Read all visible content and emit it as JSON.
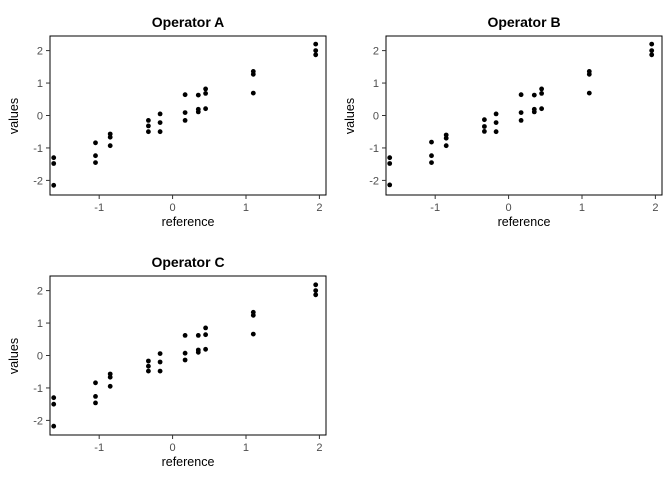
{
  "figure": {
    "background": "#ffffff",
    "panel_background": "#ffffff",
    "point_color": "#000000",
    "border_color": "#000000",
    "tick_mark_color": "#333333",
    "tick_label_color": "#4d4d4d",
    "axis_title_color": "#000000",
    "title_color": "#000000"
  },
  "chart_data": [
    {
      "type": "scatter",
      "title": "Operator A",
      "xlabel": "reference",
      "ylabel": "values",
      "xticks": [
        -1,
        0,
        1,
        2
      ],
      "yticks": [
        -2,
        -1,
        0,
        1,
        2
      ],
      "xlim": [
        -1.67,
        2.09
      ],
      "ylim": [
        -2.45,
        2.45
      ],
      "grid": false,
      "legend": false,
      "marker": "filled-circle",
      "points": [
        [
          -1.62,
          -1.3
        ],
        [
          -1.62,
          -1.48
        ],
        [
          -1.62,
          -2.15
        ],
        [
          -1.05,
          -0.84
        ],
        [
          -1.05,
          -1.24
        ],
        [
          -1.05,
          -1.45
        ],
        [
          -0.85,
          -0.57
        ],
        [
          -0.85,
          -0.67
        ],
        [
          -0.85,
          -0.93
        ],
        [
          -0.33,
          -0.15
        ],
        [
          -0.33,
          -0.32
        ],
        [
          -0.33,
          -0.5
        ],
        [
          -0.17,
          0.05
        ],
        [
          -0.17,
          -0.22
        ],
        [
          -0.17,
          -0.5
        ],
        [
          0.17,
          0.64
        ],
        [
          0.17,
          0.09
        ],
        [
          0.17,
          -0.15
        ],
        [
          0.35,
          0.63
        ],
        [
          0.35,
          0.19
        ],
        [
          0.35,
          0.11
        ],
        [
          0.45,
          0.82
        ],
        [
          0.45,
          0.68
        ],
        [
          0.45,
          0.21
        ],
        [
          1.1,
          1.36
        ],
        [
          1.1,
          1.27
        ],
        [
          1.1,
          0.69
        ],
        [
          1.95,
          2.2
        ],
        [
          1.95,
          2.0
        ],
        [
          1.95,
          1.87
        ]
      ]
    },
    {
      "type": "scatter",
      "title": "Operator B",
      "xlabel": "reference",
      "ylabel": "values",
      "xticks": [
        -1,
        0,
        1,
        2
      ],
      "yticks": [
        -2,
        -1,
        0,
        1,
        2
      ],
      "xlim": [
        -1.67,
        2.09
      ],
      "ylim": [
        -2.45,
        2.45
      ],
      "grid": false,
      "legend": false,
      "marker": "filled-circle",
      "points": [
        [
          -1.62,
          -1.3
        ],
        [
          -1.62,
          -1.48
        ],
        [
          -1.62,
          -2.14
        ],
        [
          -1.05,
          -0.82
        ],
        [
          -1.05,
          -1.24
        ],
        [
          -1.05,
          -1.45
        ],
        [
          -0.85,
          -0.6
        ],
        [
          -0.85,
          -0.7
        ],
        [
          -0.85,
          -0.93
        ],
        [
          -0.33,
          -0.13
        ],
        [
          -0.33,
          -0.34
        ],
        [
          -0.33,
          -0.49
        ],
        [
          -0.17,
          0.05
        ],
        [
          -0.17,
          -0.22
        ],
        [
          -0.17,
          -0.5
        ],
        [
          0.17,
          0.64
        ],
        [
          0.17,
          0.09
        ],
        [
          0.17,
          -0.15
        ],
        [
          0.35,
          0.63
        ],
        [
          0.35,
          0.19
        ],
        [
          0.35,
          0.11
        ],
        [
          0.45,
          0.82
        ],
        [
          0.45,
          0.68
        ],
        [
          0.45,
          0.21
        ],
        [
          1.1,
          1.36
        ],
        [
          1.1,
          1.27
        ],
        [
          1.1,
          0.69
        ],
        [
          1.95,
          2.2
        ],
        [
          1.95,
          2.0
        ],
        [
          1.95,
          1.87
        ]
      ]
    },
    {
      "type": "scatter",
      "title": "Operator C",
      "xlabel": "reference",
      "ylabel": "values",
      "xticks": [
        -1,
        0,
        1,
        2
      ],
      "yticks": [
        -2,
        -1,
        0,
        1,
        2
      ],
      "xlim": [
        -1.67,
        2.09
      ],
      "ylim": [
        -2.45,
        2.45
      ],
      "grid": false,
      "legend": false,
      "marker": "filled-circle",
      "points": [
        [
          -1.62,
          -1.3
        ],
        [
          -1.62,
          -1.5
        ],
        [
          -1.62,
          -2.18
        ],
        [
          -1.05,
          -0.84
        ],
        [
          -1.05,
          -1.26
        ],
        [
          -1.05,
          -1.46
        ],
        [
          -0.85,
          -0.57
        ],
        [
          -0.85,
          -0.67
        ],
        [
          -0.85,
          -0.95
        ],
        [
          -0.33,
          -0.17
        ],
        [
          -0.33,
          -0.33
        ],
        [
          -0.33,
          -0.48
        ],
        [
          -0.17,
          0.06
        ],
        [
          -0.17,
          -0.2
        ],
        [
          -0.17,
          -0.48
        ],
        [
          0.17,
          0.62
        ],
        [
          0.17,
          0.07
        ],
        [
          0.17,
          -0.14
        ],
        [
          0.35,
          0.62
        ],
        [
          0.35,
          0.17
        ],
        [
          0.35,
          0.1
        ],
        [
          0.45,
          0.85
        ],
        [
          0.45,
          0.64
        ],
        [
          0.45,
          0.19
        ],
        [
          1.1,
          1.33
        ],
        [
          1.1,
          1.24
        ],
        [
          1.1,
          0.66
        ],
        [
          1.95,
          2.18
        ],
        [
          1.95,
          2.0
        ],
        [
          1.95,
          1.87
        ]
      ]
    }
  ]
}
